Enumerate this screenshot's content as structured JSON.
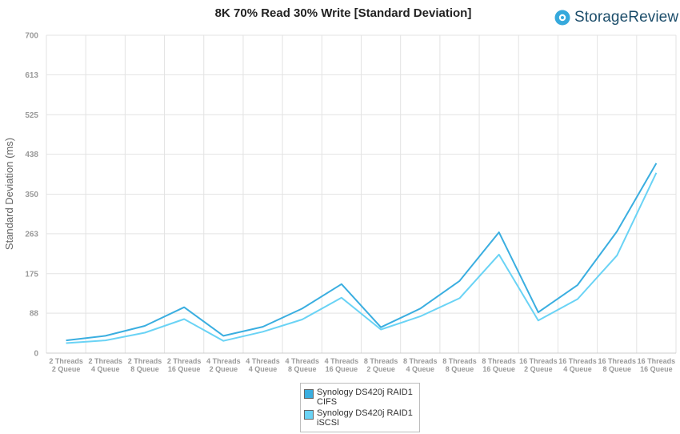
{
  "header": {
    "title": "8K 70% Read 30% Write [Standard Deviation]",
    "logo_text": "StorageReview"
  },
  "colors": {
    "cifs": "#3aaee0",
    "iscsi": "#6ad3f5",
    "grid": "#e3e3e3",
    "axis": "#cccccc",
    "logo_icon": "#36a9dc",
    "logo_text": "#1d4e6b"
  },
  "legend": [
    {
      "line1": "Synology DS420j RAID1",
      "line2": "CIFS"
    },
    {
      "line1": "Synology DS420j RAID1",
      "line2": "iSCSI"
    }
  ],
  "chart_data": {
    "type": "line",
    "title": "8K 70% Read 30% Write [Standard Deviation]",
    "xlabel": "",
    "ylabel": "Standard Deviation (ms)",
    "ylim": [
      0,
      700
    ],
    "yticks": [
      "0",
      "88",
      "175",
      "263",
      "350",
      "438",
      "525",
      "613",
      "700"
    ],
    "grid": true,
    "legend_position": "bottom",
    "categories": [
      [
        "2 Threads",
        "2 Queue"
      ],
      [
        "2 Threads",
        "4 Queue"
      ],
      [
        "2 Threads",
        "8 Queue"
      ],
      [
        "2 Threads",
        "16 Queue"
      ],
      [
        "4 Threads",
        "2 Queue"
      ],
      [
        "4 Threads",
        "4 Queue"
      ],
      [
        "4 Threads",
        "8 Queue"
      ],
      [
        "4 Threads",
        "16 Queue"
      ],
      [
        "8 Threads",
        "2 Queue"
      ],
      [
        "8 Threads",
        "4 Queue"
      ],
      [
        "8 Threads",
        "8 Queue"
      ],
      [
        "8 Threads",
        "16 Queue"
      ],
      [
        "16 Threads",
        "2 Queue"
      ],
      [
        "16 Threads",
        "4 Queue"
      ],
      [
        "16 Threads",
        "8 Queue"
      ],
      [
        "16 Threads",
        "16 Queue"
      ]
    ],
    "series": [
      {
        "name": "Synology DS420j RAID1 CIFS",
        "values": [
          28,
          38,
          60,
          101,
          38,
          58,
          98,
          152,
          57,
          98,
          159,
          266,
          90,
          150,
          268,
          418
        ]
      },
      {
        "name": "Synology DS420j RAID1 iSCSI",
        "values": [
          22,
          28,
          45,
          75,
          27,
          47,
          74,
          122,
          52,
          81,
          121,
          217,
          72,
          119,
          215,
          397
        ]
      }
    ]
  }
}
